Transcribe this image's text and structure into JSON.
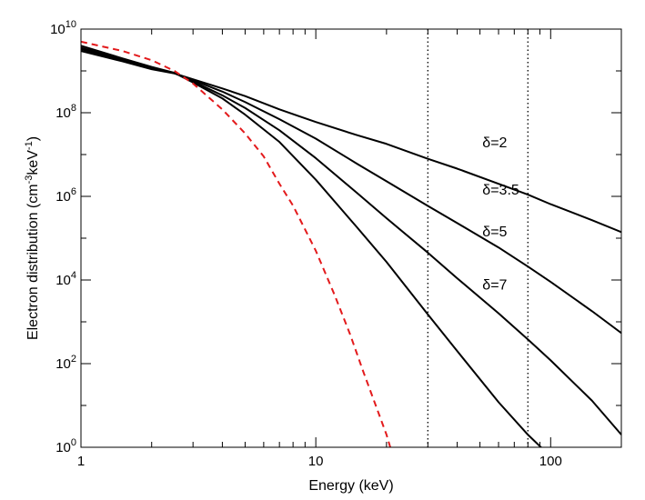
{
  "chart_data": {
    "type": "line",
    "xlabel": "Energy (keV)",
    "ylabel": {
      "pre": "Electron distribution (cm",
      "sup1": "-3",
      "mid": "keV",
      "sup2": "-1",
      "post": ")"
    },
    "xscale": "log",
    "yscale": "log",
    "xlim": [
      1,
      200
    ],
    "ylim": [
      1,
      10000000000
    ],
    "xticks": [
      {
        "value": 1,
        "label": "1"
      },
      {
        "value": 10,
        "label": "10"
      },
      {
        "value": 100,
        "label": "100"
      }
    ],
    "yticks": [
      {
        "value": 1,
        "base": "10",
        "exp": "0"
      },
      {
        "value": 100,
        "base": "10",
        "exp": "2"
      },
      {
        "value": 10000,
        "base": "10",
        "exp": "4"
      },
      {
        "value": 1000000,
        "base": "10",
        "exp": "6"
      },
      {
        "value": 100000000,
        "base": "10",
        "exp": "8"
      },
      {
        "value": 10000000000,
        "base": "10",
        "exp": "10"
      }
    ],
    "vlines": [
      30,
      80
    ],
    "series": [
      {
        "name": "δ=2",
        "style": "solid",
        "color": "#000000",
        "label_at": [
          30,
          20000000
        ],
        "points": [
          [
            1,
            3000000000
          ],
          [
            1.5,
            1700000000
          ],
          [
            2,
            1100000000
          ],
          [
            2.5,
            870000000
          ],
          [
            3,
            630000000
          ],
          [
            4,
            380000000
          ],
          [
            5,
            250000000
          ],
          [
            7,
            120000000
          ],
          [
            10,
            60000000
          ],
          [
            15,
            29000000
          ],
          [
            20,
            18000000
          ],
          [
            30,
            7900000
          ],
          [
            40,
            4600000
          ],
          [
            60,
            2000000
          ],
          [
            80,
            1100000
          ],
          [
            100,
            650000
          ],
          [
            150,
            270000
          ],
          [
            200,
            140000
          ]
        ]
      },
      {
        "name": "δ=3.5",
        "style": "solid",
        "color": "#000000",
        "label_at": [
          30,
          1500000
        ],
        "points": [
          [
            1,
            3300000000
          ],
          [
            1.5,
            1800000000
          ],
          [
            2,
            1150000000
          ],
          [
            2.5,
            880000000
          ],
          [
            3,
            600000000
          ],
          [
            4,
            320000000
          ],
          [
            5,
            180000000
          ],
          [
            7,
            70000000
          ],
          [
            10,
            24000000
          ],
          [
            15,
            6000000
          ],
          [
            20,
            2300000
          ],
          [
            30,
            590000
          ],
          [
            40,
            230000
          ],
          [
            60,
            60000
          ],
          [
            80,
            21000
          ],
          [
            100,
            9000
          ],
          [
            150,
            1800
          ],
          [
            200,
            540
          ]
        ]
      },
      {
        "name": "δ=5",
        "style": "solid",
        "color": "#000000",
        "label_at": [
          30,
          150000
        ],
        "points": [
          [
            1,
            3600000000
          ],
          [
            1.5,
            1900000000
          ],
          [
            2,
            1200000000
          ],
          [
            2.5,
            890000000
          ],
          [
            3,
            560000000
          ],
          [
            4,
            260000000
          ],
          [
            5,
            130000000
          ],
          [
            7,
            38000000
          ],
          [
            10,
            8200000
          ],
          [
            15,
            1200000
          ],
          [
            20,
            300000
          ],
          [
            30,
            45000
          ],
          [
            40,
            11000
          ],
          [
            60,
            1600
          ],
          [
            80,
            380
          ],
          [
            100,
            120
          ],
          [
            150,
            13
          ],
          [
            200,
            2
          ]
        ]
      },
      {
        "name": "δ=7",
        "style": "solid",
        "color": "#000000",
        "label_at": [
          30,
          8000
        ],
        "points": [
          [
            1,
            4000000000
          ],
          [
            1.5,
            2000000000
          ],
          [
            2,
            1250000000
          ],
          [
            2.5,
            900000000
          ],
          [
            3,
            530000000
          ],
          [
            4,
            220000000
          ],
          [
            5,
            90000000
          ],
          [
            7,
            20000000
          ],
          [
            10,
            2500000
          ],
          [
            15,
            180000
          ],
          [
            20,
            27000
          ],
          [
            30,
            1500
          ],
          [
            40,
            200
          ],
          [
            60,
            12
          ],
          [
            80,
            2
          ],
          [
            100,
            0.6
          ]
        ]
      },
      {
        "name": "",
        "style": "dashed",
        "color": "#e31a1c",
        "points": [
          [
            1,
            5000000000
          ],
          [
            1.5,
            3000000000
          ],
          [
            2,
            1800000000
          ],
          [
            2.5,
            1000000000
          ],
          [
            3,
            500000000
          ],
          [
            4,
            120000000
          ],
          [
            5,
            32000000
          ],
          [
            6,
            9000000
          ],
          [
            7,
            2000000
          ],
          [
            8,
            600000
          ],
          [
            10,
            50000
          ],
          [
            12,
            4500
          ],
          [
            14,
            500
          ],
          [
            16,
            60
          ],
          [
            18,
            10
          ],
          [
            20,
            2
          ],
          [
            21,
            0.8
          ]
        ]
      }
    ]
  }
}
